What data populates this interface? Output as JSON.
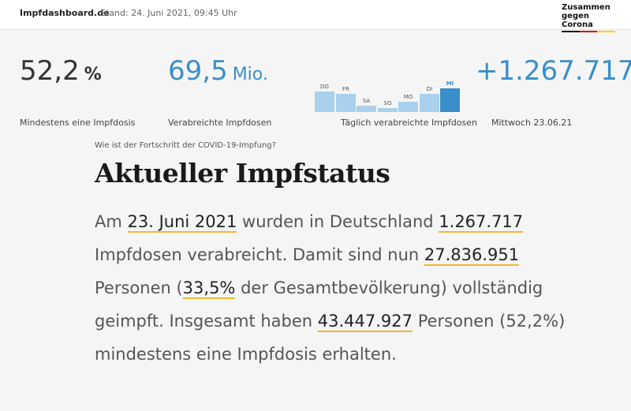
{
  "header": {
    "brand": "Impfdashboard.de",
    "stand": "Stand: 24. Juni 2021, 09:45 Uhr",
    "logo_line1": "Zusammen",
    "logo_line2": "gegen Corona",
    "flag_colors": [
      "#111111",
      "#dd0000",
      "#ffce00"
    ]
  },
  "stats": {
    "first_dose": {
      "value": "52,2",
      "unit": "%",
      "label": "Mindestens eine Impfdosis"
    },
    "total_doses": {
      "value": "69,5",
      "unit": "Mio.",
      "label": "Verabreichte Impfdosen"
    },
    "daily_chart": {
      "label": "Täglich verabreichte Impfdosen",
      "colors": {
        "bar": "#a9d0ec",
        "active": "#3a8fc8"
      },
      "chart_data": {
        "type": "bar",
        "categories": [
          "DO",
          "FR",
          "SA",
          "SO",
          "MO",
          "DI",
          "MI"
        ],
        "values": [
          0.85,
          0.75,
          0.28,
          0.18,
          0.44,
          0.77,
          1.0
        ],
        "active_index": 6
      }
    },
    "daily": {
      "value": "+1.267.717",
      "label": "Mittwoch 23.06.21"
    }
  },
  "content": {
    "kicker": "Wie ist der Fortschritt der COVID-19-Impfung?",
    "headline": "Aktueller Impfstatus",
    "p": {
      "t1": "Am ",
      "date": "23. Juni 2021",
      "t2": " wurden in Deutschland ",
      "doses": "1.267.717",
      "t3": " Impfdosen verabreicht. Damit sind nun ",
      "full": "27.836.951",
      "t4": " Personen (",
      "full_pct": "33,5%",
      "t5": " der Gesamtbevölkerung) vollständig geimpft. Insgesamt haben ",
      "first": "43.447.927",
      "t6": " Personen (52,2%) mindestens eine Impfdosis erhalten."
    }
  }
}
